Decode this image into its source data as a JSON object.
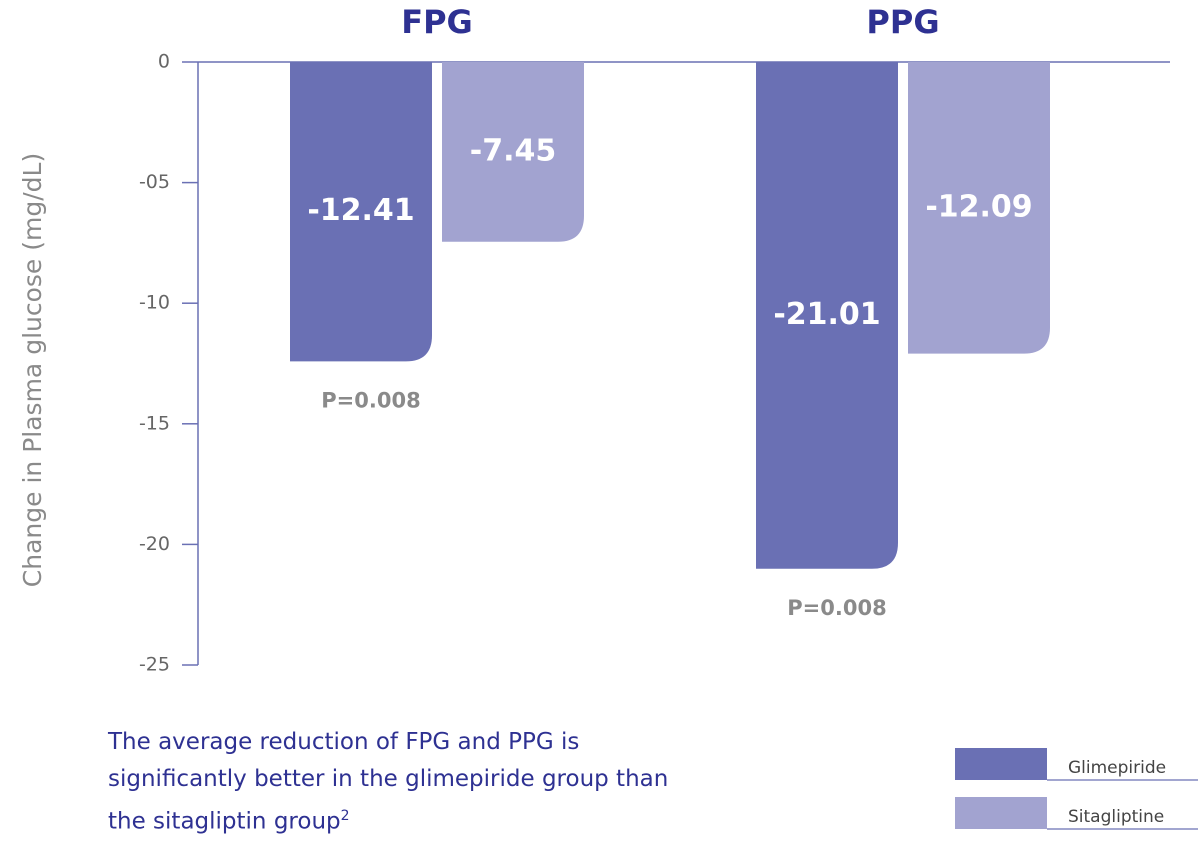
{
  "chart_data": {
    "type": "bar",
    "y_label": "Change in Plasma glucose (mg/dL)",
    "categories": [
      "FPG",
      "PPG"
    ],
    "series": [
      {
        "name": "Glimepiride",
        "color": "#6a70b4",
        "values": [
          -12.41,
          -21.01
        ]
      },
      {
        "name": "Sitagliptine",
        "color": "#a2a3d0",
        "values": [
          -7.45,
          -12.09
        ]
      }
    ],
    "annotations": [
      "P=0.008",
      "P=0.008"
    ],
    "ylim": [
      -25,
      0
    ],
    "yticks": [
      0,
      {
        "value": -5,
        "label": "-05"
      },
      -10,
      -15,
      -20,
      -25
    ],
    "legend": "lower right",
    "note": "The average reduction of FPG and PPG is significantly better in the glimepiride group than the sitagliptin group",
    "note_ref": "2"
  }
}
